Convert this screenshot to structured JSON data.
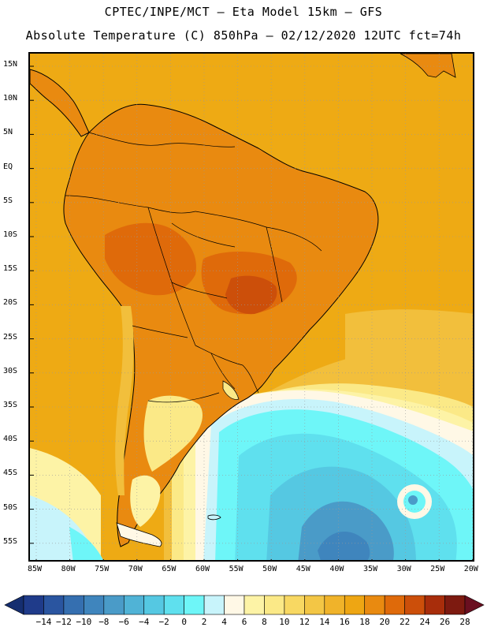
{
  "title_line1": "CPTEC/INPE/MCT –  Eta Model 15km – GFS",
  "title_line2": "Absolute Temperature (C) 850hPa – 02/12/2020 12UTC fct=74h",
  "lat_labels": [
    "15N",
    "10N",
    "5N",
    "EQ",
    "5S",
    "10S",
    "15S",
    "20S",
    "25S",
    "30S",
    "35S",
    "40S",
    "45S",
    "50S",
    "55S"
  ],
  "lon_labels": [
    "85W",
    "80W",
    "75W",
    "70W",
    "65W",
    "60W",
    "55W",
    "50W",
    "45W",
    "40W",
    "35W",
    "30W",
    "25W",
    "20W"
  ],
  "colorbar": {
    "labels": [
      "-14",
      "-12",
      "-10",
      "-8",
      "-6",
      "-4",
      "-2",
      "0",
      "2",
      "4",
      "6",
      "8",
      "10",
      "12",
      "14",
      "16",
      "18",
      "20",
      "22",
      "24",
      "26",
      "28"
    ],
    "colors": [
      "#1f3b8a",
      "#2a55a0",
      "#356fb0",
      "#3f85bd",
      "#4a9bc8",
      "#50b3d6",
      "#55c8e2",
      "#5fe0ee",
      "#6ef6f8",
      "#c8f4fb",
      "#fff8e6",
      "#fdf3a6",
      "#fbe987",
      "#f8d862",
      "#f3c645",
      "#f0b32a",
      "#eea613",
      "#e98a10",
      "#df6a0a",
      "#cc4f0a",
      "#a82d0b",
      "#7d1a10"
    ],
    "left_arrow_color": "#152e70",
    "right_arrow_color": "#6a0f20"
  },
  "map_colors": {
    "ocean_warm": "#eeaa14",
    "warm_band": "#f2bf3c",
    "mild_yellow": "#fbe987",
    "pale": "#fdf3a6",
    "cream": "#fff8e6",
    "light_cyan": "#c8f4fb",
    "cyan": "#6ef6f8",
    "cyan2": "#5fe0ee",
    "blue1": "#55c8e2",
    "blue2": "#4a9bc8",
    "blue3": "#3f85bd",
    "land_hot": "#e98a10",
    "land_hotter": "#df6a0a",
    "land_hottest": "#cc4f0a",
    "grid": "#999999"
  }
}
